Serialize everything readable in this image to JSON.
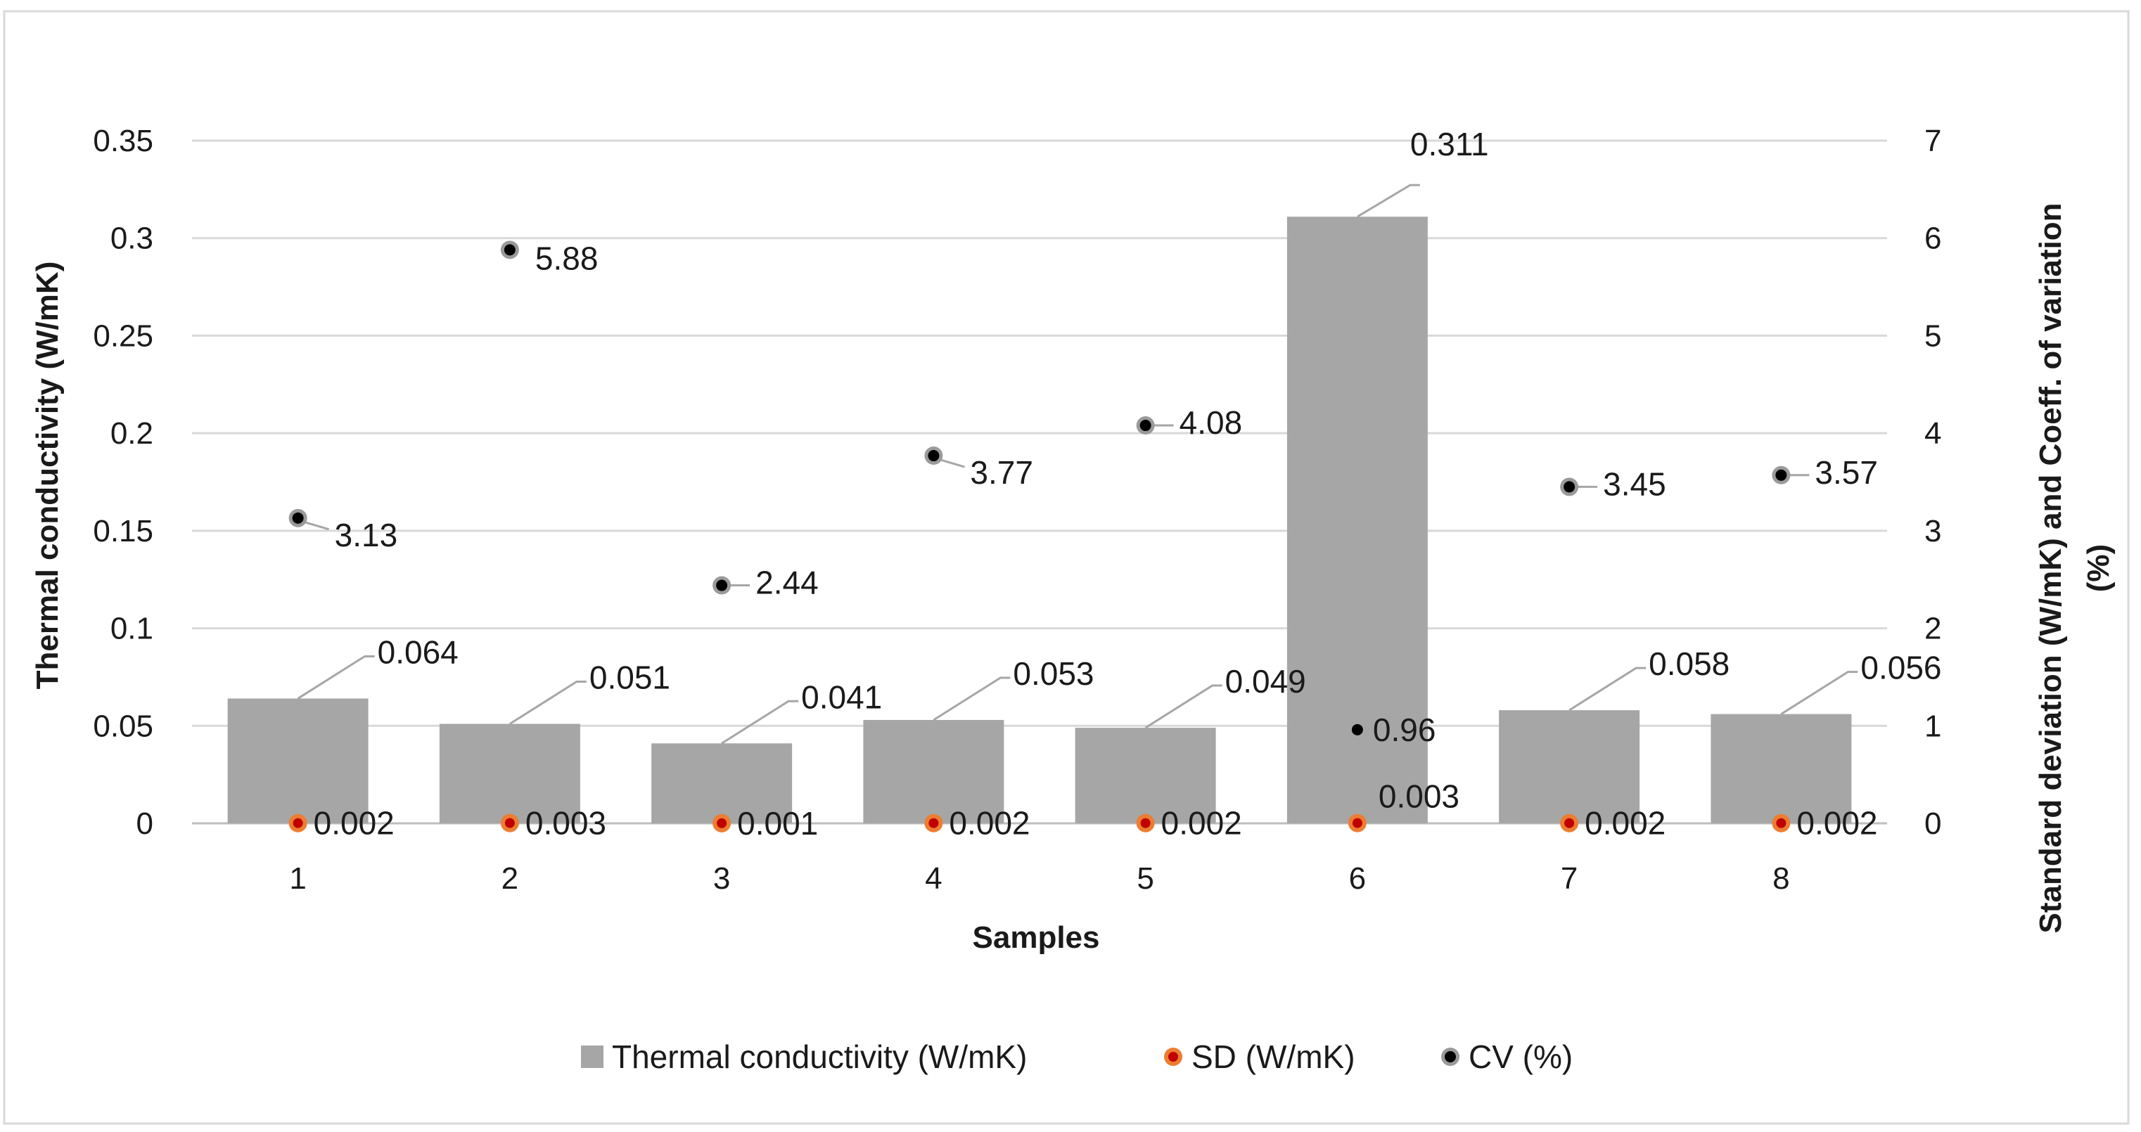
{
  "chart_data": {
    "type": "bar",
    "title": "",
    "xlabel": "Samples",
    "ylabel": "Thermal conductivity (W/mK)",
    "y2label_line1": "Standard deviation (W/mK) and Coeff. of variation",
    "y2label_line2": "(%)",
    "categories": [
      "1",
      "2",
      "3",
      "4",
      "5",
      "6",
      "7",
      "8"
    ],
    "ylim": [
      0,
      0.35
    ],
    "yticks": [
      "0",
      "0.05",
      "0.1",
      "0.15",
      "0.2",
      "0.25",
      "0.3",
      "0.35"
    ],
    "y2lim": [
      0,
      7
    ],
    "y2ticks": [
      "0",
      "1",
      "2",
      "3",
      "4",
      "5",
      "6",
      "7"
    ],
    "grid": true,
    "legend_position": "bottom",
    "series": [
      {
        "name": "Thermal conductivity (W/mK)",
        "kind": "bar",
        "axis": "left",
        "color": "#a6a6a6",
        "values": [
          0.064,
          0.051,
          0.041,
          0.053,
          0.049,
          0.311,
          0.058,
          0.056
        ],
        "labels": [
          "0.064",
          "0.051",
          "0.041",
          "0.053",
          "0.049",
          "0.311",
          "0.058",
          "0.056"
        ]
      },
      {
        "name": "SD (W/mK)",
        "kind": "scatter",
        "axis": "right",
        "color": "#c00000",
        "values": [
          0.002,
          0.003,
          0.001,
          0.002,
          0.002,
          0.003,
          0.002,
          0.002
        ],
        "labels": [
          "0.002",
          "0.003",
          "0.001",
          "0.002",
          "0.002",
          "0.003",
          "0.002",
          "0.002"
        ]
      },
      {
        "name": "CV (%)",
        "kind": "scatter",
        "axis": "right",
        "color": "#000000",
        "values": [
          3.13,
          5.88,
          2.44,
          3.77,
          4.08,
          0.96,
          3.45,
          3.57
        ],
        "labels": [
          "3.13",
          "5.88",
          "2.44",
          "3.77",
          "4.08",
          "0.96",
          "3.45",
          "3.57"
        ]
      }
    ]
  }
}
